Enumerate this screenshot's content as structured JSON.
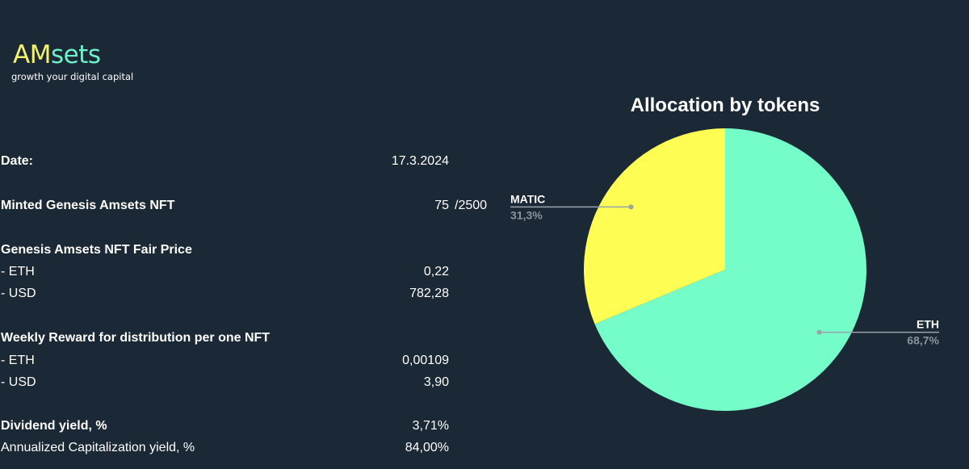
{
  "logo": {
    "word_part1": "AM",
    "word_part2": "sets",
    "tagline": "growth your digital capital"
  },
  "stats": {
    "date": {
      "label": "Date:",
      "value": "17.3.2024"
    },
    "minted": {
      "label": "Minted Genesis Amsets NFT",
      "value": "75",
      "suffix": "/2500"
    },
    "fair_price": {
      "label": "Genesis Amsets NFT Fair Price",
      "eth": {
        "label": "- ETH",
        "value": "0,22"
      },
      "usd": {
        "label": "- USD",
        "value": "782,28"
      }
    },
    "weekly_reward": {
      "label": "Weekly Reward for distribution per one NFT",
      "eth": {
        "label": "- ETH",
        "value": "0,00109"
      },
      "usd": {
        "label": "- USD",
        "value": "3,90"
      }
    },
    "dividend_yield": {
      "label": "Dividend yield, %",
      "value": "3,71%"
    },
    "annualized_yield": {
      "label": "Annualized Capitalization yield, %",
      "value": "84,00%"
    }
  },
  "chart_data": {
    "type": "pie",
    "title": "Allocation by tokens",
    "slices": [
      {
        "label": "ETH",
        "value": 68.7,
        "display": "68,7%",
        "color": "#74fcc9"
      },
      {
        "label": "MATIC",
        "value": 31.3,
        "display": "31,3%",
        "color": "#fdfd54"
      }
    ],
    "label_color": "#ffffff",
    "percent_color": "#8a939c",
    "leader_color": "#9aa3ab"
  },
  "colors": {
    "background": "#1b2836",
    "logo_am": "#f4f26a",
    "logo_sets": "#6ff0c7"
  }
}
